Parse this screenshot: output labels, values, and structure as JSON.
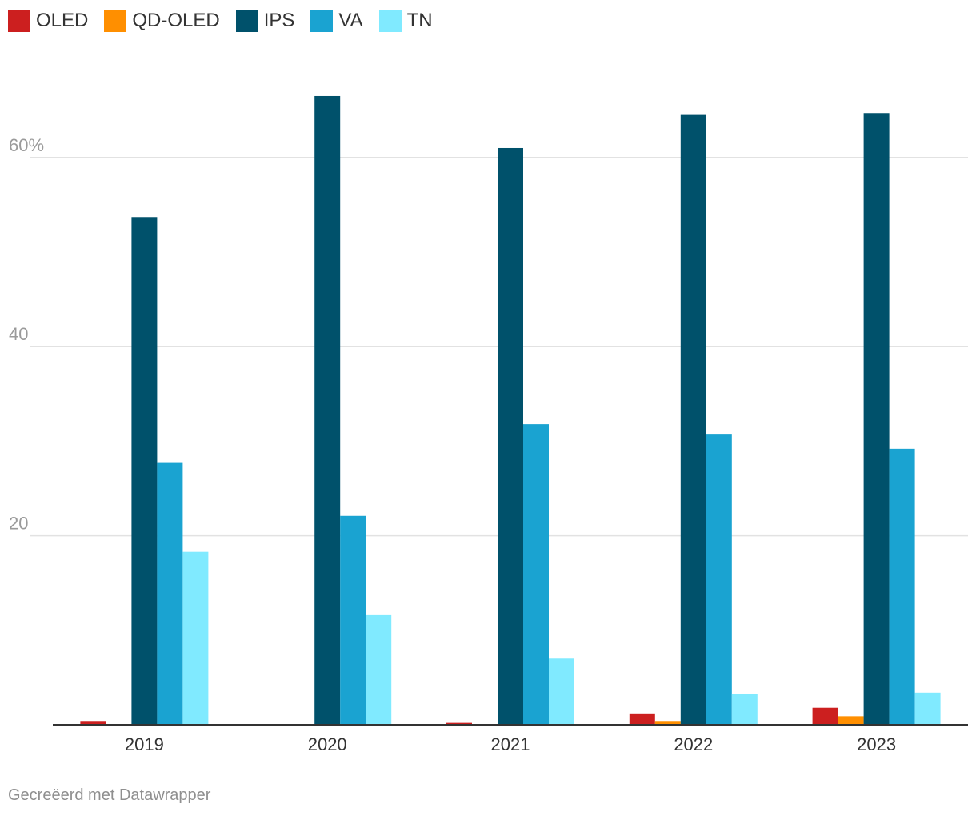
{
  "chart_data": {
    "type": "bar",
    "categories": [
      "2019",
      "2020",
      "2021",
      "2022",
      "2023"
    ],
    "series": [
      {
        "name": "OLED",
        "color": "#cc1f1f",
        "values": [
          0.4,
          0,
          0.2,
          1.2,
          1.8
        ]
      },
      {
        "name": "QD-OLED",
        "color": "#ff8f00",
        "values": [
          0,
          0,
          0,
          0.4,
          0.9
        ]
      },
      {
        "name": "IPS",
        "color": "#00516b",
        "values": [
          53.7,
          66.5,
          61.0,
          64.5,
          64.7
        ]
      },
      {
        "name": "VA",
        "color": "#1aa3d1",
        "values": [
          27.7,
          22.1,
          31.8,
          30.7,
          29.2
        ]
      },
      {
        "name": "TN",
        "color": "#80eaff",
        "values": [
          18.3,
          11.6,
          7.0,
          3.3,
          3.4
        ]
      }
    ],
    "yticks": [
      {
        "value": 20,
        "label": "20"
      },
      {
        "value": 40,
        "label": "40"
      },
      {
        "value": 60,
        "label": "60%"
      }
    ],
    "ylim": [
      0,
      70
    ],
    "grid": true,
    "legend_position": "top-left"
  },
  "credit": "Gecreëerd met Datawrapper"
}
